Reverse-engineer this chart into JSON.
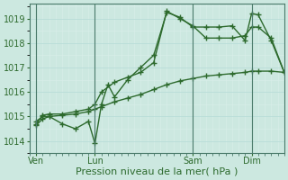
{
  "background_color": "#cce8e0",
  "grid_major_color": "#b0d8d0",
  "grid_minor_color": "#ddf0eb",
  "line_color": "#2d6a2d",
  "marker": "+",
  "markersize": 4,
  "linewidth": 1.0,
  "ylim": [
    1013.5,
    1019.6
  ],
  "yticks": [
    1014,
    1015,
    1016,
    1017,
    1018,
    1019
  ],
  "xlabel": "Pression niveau de la mer( hPa )",
  "xlabel_fontsize": 8,
  "tick_fontsize": 7,
  "day_labels": [
    "Ven",
    "Lun",
    "Sam",
    "Dim"
  ],
  "day_positions": [
    0,
    4.5,
    12,
    16.5
  ],
  "xlim": [
    -0.5,
    19
  ],
  "vlines_x": [
    0,
    4.5,
    12,
    16.5
  ],
  "series1_x": [
    0,
    0.5,
    1,
    2,
    3,
    4,
    4.5,
    5,
    5.5,
    6,
    7,
    8,
    9,
    10,
    11,
    12,
    13,
    14,
    15,
    16,
    16.5,
    17,
    18,
    19
  ],
  "series1_y": [
    1014.8,
    1015.0,
    1015.0,
    1014.7,
    1014.5,
    1014.8,
    1013.9,
    1015.5,
    1016.3,
    1015.8,
    1016.5,
    1017.0,
    1017.5,
    1019.25,
    1019.05,
    1018.65,
    1018.65,
    1018.65,
    1018.7,
    1018.1,
    1019.2,
    1019.15,
    1018.1,
    1016.8
  ],
  "series2_x": [
    0,
    0.5,
    1,
    2,
    3,
    4,
    4.5,
    5,
    6,
    7,
    8,
    9,
    10,
    11,
    12,
    13,
    14,
    15,
    16,
    16.5,
    17,
    18,
    19
  ],
  "series2_y": [
    1014.7,
    1015.05,
    1015.1,
    1015.1,
    1015.2,
    1015.3,
    1015.5,
    1016.0,
    1016.4,
    1016.6,
    1016.8,
    1017.2,
    1019.3,
    1019.0,
    1018.7,
    1018.2,
    1018.2,
    1018.2,
    1018.3,
    1018.65,
    1018.65,
    1018.2,
    1016.8
  ],
  "series3_x": [
    0,
    0.5,
    1,
    2,
    3,
    4,
    4.5,
    5,
    6,
    7,
    8,
    9,
    10,
    11,
    12,
    13,
    14,
    15,
    16,
    16.5,
    17,
    18,
    19
  ],
  "series3_y": [
    1014.65,
    1014.9,
    1015.0,
    1015.05,
    1015.1,
    1015.2,
    1015.3,
    1015.4,
    1015.6,
    1015.75,
    1015.9,
    1016.1,
    1016.3,
    1016.45,
    1016.55,
    1016.65,
    1016.7,
    1016.75,
    1016.8,
    1016.85,
    1016.85,
    1016.85,
    1016.8
  ]
}
